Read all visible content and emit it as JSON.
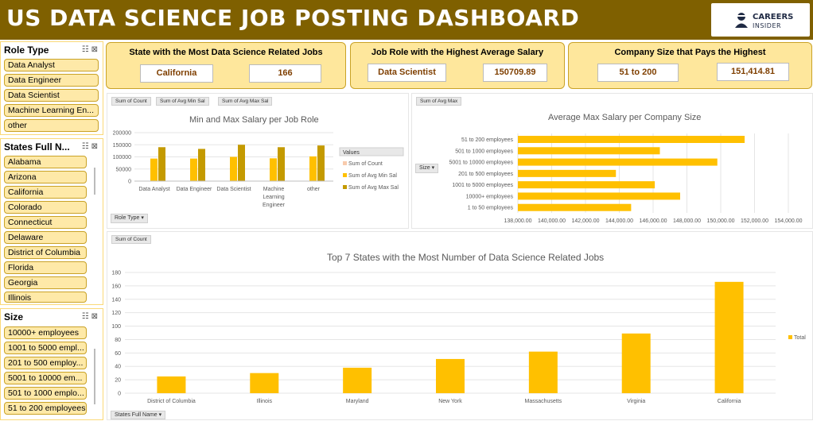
{
  "header": {
    "title": "US DATA SCIENCE JOB POSTING DASHBOARD",
    "logo_line1": "CAREERS",
    "logo_line2": "INSIDER"
  },
  "slicers": {
    "role": {
      "title": "Role Type",
      "items": [
        "Data Analyst",
        "Data Engineer",
        "Data Scientist",
        "Machine Learning En...",
        "other"
      ]
    },
    "states": {
      "title": "States Full N...",
      "items": [
        "Alabama",
        "Arizona",
        "California",
        "Colorado",
        "Connecticut",
        "Delaware",
        "District of Columbia",
        "Florida",
        "Georgia",
        "Illinois"
      ]
    },
    "size": {
      "title": "Size",
      "items": [
        "10000+ employees",
        "1001 to 5000 empl...",
        "201 to 500 employ...",
        "5001 to 10000 em...",
        "501 to 1000 emplo...",
        "51 to 200 employees"
      ]
    }
  },
  "kpis": {
    "state": {
      "title": "State with the Most Data Science Related Jobs",
      "name": "California",
      "value": "166"
    },
    "role": {
      "title": "Job Role with the Highest Average Salary",
      "name": "Data Scientist",
      "value": "150709.89"
    },
    "company": {
      "title": "Company Size that Pays the Highest",
      "name": "51 to 200",
      "value": "151,414.81"
    }
  },
  "charts": {
    "salary": {
      "buttons": [
        "Sum of Count",
        "Sum of Avg Min Sal",
        "Sum of Avg Max Sal"
      ],
      "title": "Min and Max Salary per Job Role",
      "legend_title": "Values",
      "legend": [
        "Sum of Count",
        "Sum of Avg Min Sal",
        "Sum of Avg Max Sal"
      ],
      "filter": "Role Type",
      "colors": {
        "count": "#f8cbad",
        "min": "#ffc000",
        "max": "#c49a00"
      }
    },
    "company": {
      "button": "Sum of Avg Max",
      "title": "Average Max Salary per Company Size",
      "filter": "Size"
    },
    "states": {
      "button": "Sum of Count",
      "title": "Top 7 States with the Most Number of Data Science Related Jobs",
      "legend": "Total",
      "filter": "States Full Name"
    }
  },
  "chart_data": [
    {
      "type": "bar",
      "title": "Min and Max Salary per Job Role",
      "categories": [
        "Data Analyst",
        "Data Engineer",
        "Data Scientist",
        "Machine Learning Engineer",
        "other"
      ],
      "series": [
        {
          "name": "Sum of Count",
          "values": [
            1,
            1,
            1,
            1,
            1
          ]
        },
        {
          "name": "Sum of Avg Min Sal",
          "values": [
            93000,
            93000,
            100000,
            94000,
            102000
          ]
        },
        {
          "name": "Sum of Avg Max Sal",
          "values": [
            140000,
            133000,
            150000,
            140000,
            147000
          ]
        }
      ],
      "ylim": [
        0,
        200000
      ],
      "yticks": [
        "0",
        "50000",
        "100000",
        "150000",
        "200000"
      ]
    },
    {
      "type": "bar",
      "orientation": "horizontal",
      "title": "Average Max Salary per Company Size",
      "categories": [
        "51 to 200 employees",
        "501 to 1000 employees",
        "5001 to 10000 employees",
        "201 to 500 employees",
        "1001 to 5000 employees",
        "10000+ employees",
        "1 to 50 employees"
      ],
      "values": [
        151414.81,
        146400,
        149800,
        143800,
        146100,
        147600,
        144700
      ],
      "xlim": [
        138000,
        154000
      ],
      "xticks": [
        "138,000.00",
        "140,000.00",
        "142,000.00",
        "144,000.00",
        "146,000.00",
        "148,000.00",
        "150,000.00",
        "152,000.00",
        "154,000.00"
      ]
    },
    {
      "type": "bar",
      "title": "Top 7 States with the Most Number of Data Science Related Jobs",
      "categories": [
        "District of Columbia",
        "Illinois",
        "Maryland",
        "New York",
        "Massachusetts",
        "Virginia",
        "California"
      ],
      "series": [
        {
          "name": "Total",
          "values": [
            25,
            30,
            38,
            51,
            62,
            89,
            166
          ]
        }
      ],
      "ylim": [
        0,
        180
      ],
      "yticks": [
        "0",
        "20",
        "40",
        "60",
        "80",
        "100",
        "120",
        "140",
        "160",
        "180"
      ]
    }
  ]
}
